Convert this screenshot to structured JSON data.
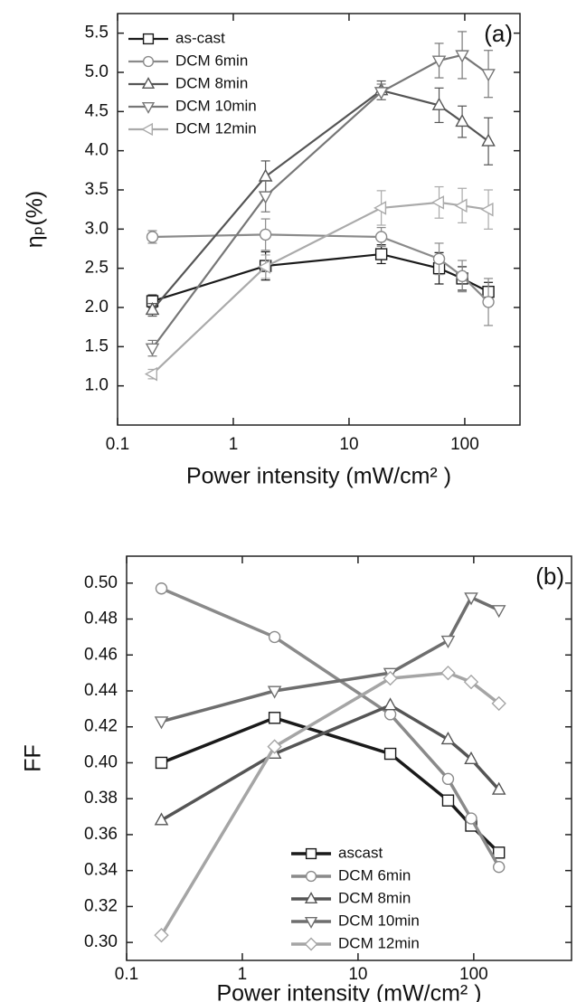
{
  "chart_data": [
    {
      "type": "line",
      "annotation": "(a)",
      "x_label": "Power intensity (mW/cm² )",
      "y_label": "ηₚ(%)",
      "x": [
        0.2,
        1.9,
        19,
        60,
        95,
        160
      ],
      "xlim": [
        0.1,
        300
      ],
      "xticks": [
        0.1,
        1,
        10,
        100
      ],
      "x_log": true,
      "ylim": [
        0.5,
        5.75
      ],
      "yticks": [
        {
          "value": 1.0,
          "label": "1.0"
        },
        1.5,
        {
          "value": 2.0,
          "label": "2.0"
        },
        2.5,
        {
          "value": 3.0,
          "label": "3.0"
        },
        3.5,
        {
          "value": 4.0,
          "label": "4.0"
        },
        4.5,
        {
          "value": 5.0,
          "label": "5.0"
        },
        5.5
      ],
      "legend": "upper left",
      "series": [
        {
          "name": "as-cast",
          "color": "#1a1a1a",
          "marker": "square",
          "values": [
            2.08,
            2.53,
            2.68,
            2.5,
            2.37,
            2.2
          ],
          "errors": [
            0.08,
            0.18,
            0.12,
            0.2,
            0.15,
            0.12
          ]
        },
        {
          "name": "DCM 6min",
          "color": "#8a8a8a",
          "marker": "circle",
          "values": [
            2.9,
            2.93,
            2.9,
            2.62,
            2.4,
            2.07
          ],
          "errors": [
            0.08,
            0.2,
            0.12,
            0.2,
            0.2,
            0.3
          ]
        },
        {
          "name": "DCM 8min",
          "color": "#555555",
          "marker": "triangle-up",
          "values": [
            1.97,
            3.67,
            4.77,
            4.58,
            4.37,
            4.12
          ],
          "errors": [
            0.08,
            0.2,
            0.12,
            0.22,
            0.2,
            0.3
          ]
        },
        {
          "name": "DCM 10min",
          "color": "#777777",
          "marker": "triangle-down",
          "values": [
            1.48,
            3.42,
            4.75,
            5.15,
            5.22,
            4.98
          ],
          "errors": [
            0.1,
            0.2,
            0.1,
            0.22,
            0.3,
            0.3
          ]
        },
        {
          "name": "DCM 12min",
          "color": "#aaaaaa",
          "marker": "triangle-left",
          "values": [
            1.15,
            2.52,
            3.27,
            3.34,
            3.3,
            3.25
          ],
          "errors": [
            0.06,
            0.15,
            0.22,
            0.2,
            0.22,
            0.25
          ]
        }
      ]
    },
    {
      "type": "line",
      "annotation": "(b)",
      "x_label": "Power intensity (mW/cm² )",
      "y_label": "FF",
      "x": [
        0.2,
        1.9,
        19,
        60,
        95,
        165
      ],
      "xlim": [
        0.1,
        700
      ],
      "xticks": [
        0.1,
        1,
        10,
        100
      ],
      "x_log": true,
      "ylim": [
        0.29,
        0.515
      ],
      "yticks": [
        {
          "value": 0.3,
          "label": "0.30"
        },
        {
          "value": 0.32,
          "label": "0.32"
        },
        {
          "value": 0.34,
          "label": "0.34"
        },
        {
          "value": 0.36,
          "label": "0.36"
        },
        {
          "value": 0.38,
          "label": "0.38"
        },
        {
          "value": 0.4,
          "label": "0.40"
        },
        {
          "value": 0.42,
          "label": "0.42"
        },
        {
          "value": 0.44,
          "label": "0.44"
        },
        {
          "value": 0.46,
          "label": "0.46"
        },
        {
          "value": 0.48,
          "label": "0.48"
        },
        {
          "value": 0.5,
          "label": "0.50"
        }
      ],
      "legend": "lower center",
      "series": [
        {
          "name": "ascast",
          "color": "#1a1a1a",
          "marker": "square",
          "values": [
            0.4,
            0.425,
            0.405,
            0.379,
            0.365,
            0.35
          ]
        },
        {
          "name": "DCM 6min",
          "color": "#8a8a8a",
          "marker": "circle",
          "values": [
            0.497,
            0.47,
            0.427,
            0.391,
            0.369,
            0.342
          ]
        },
        {
          "name": "DCM 8min",
          "color": "#555555",
          "marker": "triangle-up",
          "values": [
            0.368,
            0.405,
            0.432,
            0.413,
            0.402,
            0.385
          ]
        },
        {
          "name": "DCM 10min",
          "color": "#6e6e6e",
          "marker": "triangle-down",
          "values": [
            0.423,
            0.44,
            0.45,
            0.468,
            0.492,
            0.485
          ]
        },
        {
          "name": "DCM 12min",
          "color": "#a5a5a5",
          "marker": "diamond",
          "values": [
            0.304,
            0.409,
            0.447,
            0.45,
            0.445,
            0.433
          ]
        }
      ]
    }
  ]
}
